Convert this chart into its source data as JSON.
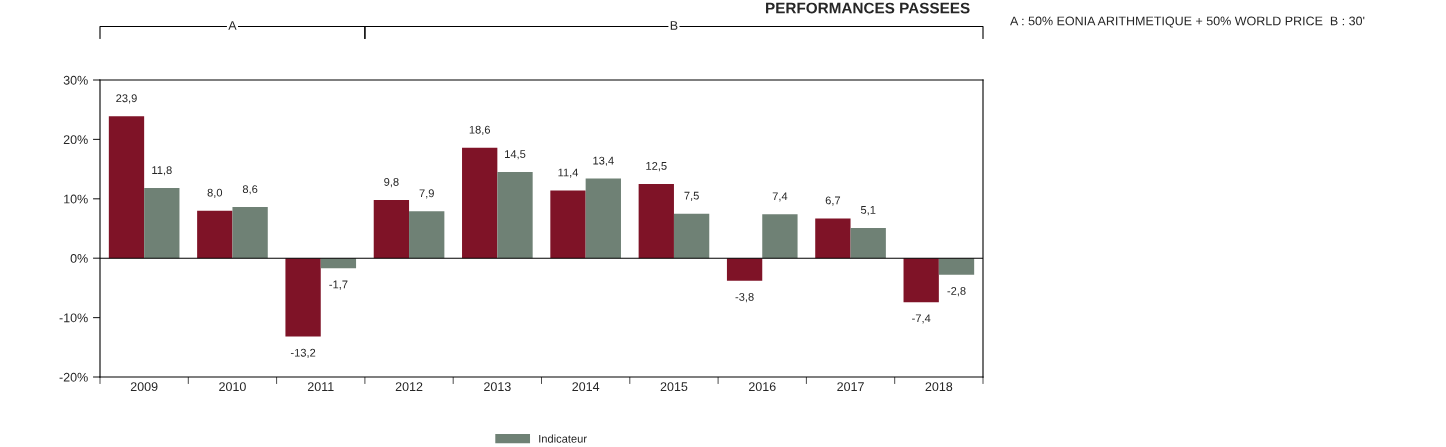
{
  "chart_data": {
    "type": "bar",
    "title": "PERFORMANCES PASSEES",
    "categories": [
      "2009",
      "2010",
      "2011",
      "2012",
      "2013",
      "2014",
      "2015",
      "2016",
      "2017",
      "2018"
    ],
    "series": [
      {
        "color": "#7f1327",
        "values": [
          23.9,
          8.0,
          -13.2,
          9.8,
          18.6,
          11.4,
          12.5,
          -3.8,
          6.7,
          -7.4
        ],
        "value_labels": [
          "23,9",
          "8,0",
          "-13,2",
          "9,8",
          "18,6",
          "11,4",
          "12,5",
          "-3,8",
          "6,7",
          "-7,4"
        ]
      },
      {
        "name": "Indicateur",
        "color": "#6f8175",
        "values": [
          11.8,
          8.6,
          -1.7,
          7.9,
          14.5,
          13.4,
          7.5,
          7.4,
          5.1,
          -2.8
        ],
        "value_labels": [
          "11,8",
          "8,6",
          "-1,7",
          "7,9",
          "14,5",
          "13,4",
          "7,5",
          "7,4",
          "5,1",
          "-2,8"
        ]
      }
    ],
    "ylim": [
      -20,
      30
    ],
    "yticks": [
      {
        "value": -20,
        "label": "-20%"
      },
      {
        "value": -10,
        "label": "-10%"
      },
      {
        "value": 0,
        "label": "0%"
      },
      {
        "value": 10,
        "label": "10%"
      },
      {
        "value": 20,
        "label": "20%"
      },
      {
        "value": 30,
        "label": "30%"
      }
    ],
    "ref_lines": [
      {
        "axis": "y",
        "value": 0,
        "label": null
      }
    ],
    "annotations": [
      "A : 50% EONIA ARITHMETIQUE + 50% WORLD PRICE  B : 30'",
      "A",
      "B"
    ],
    "grid": false,
    "legend": "bottom"
  }
}
